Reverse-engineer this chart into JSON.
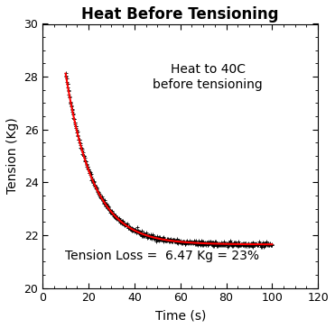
{
  "title": "Heat Before Tensioning",
  "xlabel": "Time (s)",
  "ylabel": "Tension (Kg)",
  "annotation_line1": "Heat to 40C",
  "annotation_line2": "before tensioning",
  "tension_loss_text": "Tension Loss =  6.47 Kg = 23%",
  "xlim": [
    0,
    120
  ],
  "ylim": [
    20,
    30
  ],
  "xticks": [
    0,
    20,
    40,
    60,
    80,
    100,
    120
  ],
  "yticks": [
    20,
    22,
    24,
    26,
    28,
    30
  ],
  "t_start": 10,
  "t_end": 100,
  "A": 6.47,
  "B": 21.65,
  "tau": 12.0,
  "noise_std": 0.045,
  "data_color": "#000000",
  "fit_color": "#ff0000",
  "background_color": "#ffffff",
  "title_fontsize": 12,
  "label_fontsize": 10,
  "tick_fontsize": 9,
  "annotation_fontsize": 10,
  "loss_fontsize": 10
}
